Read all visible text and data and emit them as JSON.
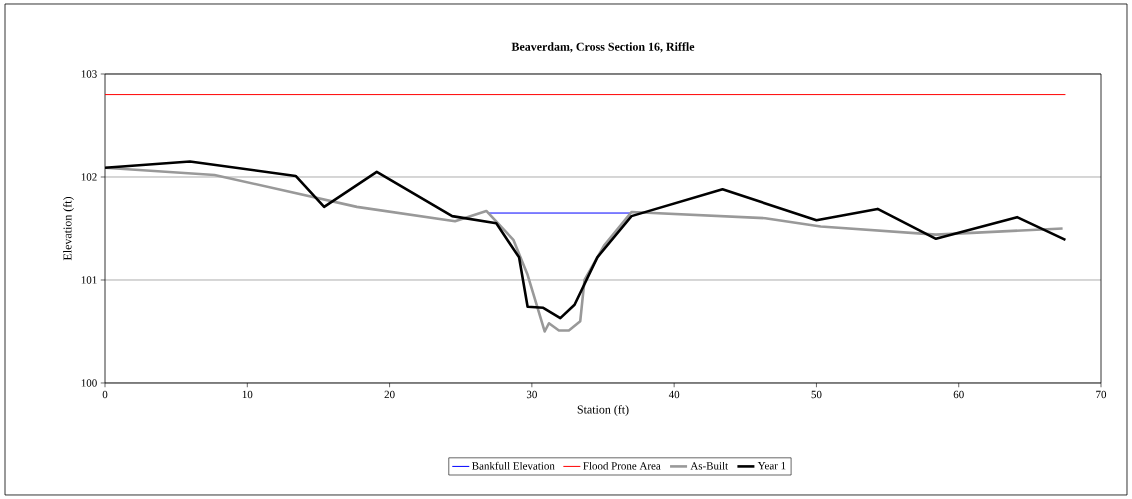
{
  "chart_data": {
    "type": "line",
    "title": "Beaverdam, Cross Section 16, Riffle",
    "xlabel": "Station (ft)",
    "ylabel": "Elevation (ft)",
    "xlim": [
      0,
      70
    ],
    "xticks": [
      0,
      10,
      20,
      30,
      40,
      50,
      60,
      70
    ],
    "ylim": [
      100,
      103
    ],
    "yticks": [
      100,
      101,
      102,
      103
    ],
    "grid": "y",
    "legend": "bottom",
    "marker": "none",
    "line_style": "solid",
    "series": [
      {
        "name": "Bankfull Elevation",
        "color": "#0000ff",
        "x": [
          26.9,
          37.0
        ],
        "values": [
          101.65,
          101.65
        ]
      },
      {
        "name": "Flood Prone Area",
        "color": "#ff0000",
        "x": [
          0,
          67.5
        ],
        "values": [
          102.8,
          102.8
        ]
      },
      {
        "name": "As-Built",
        "color": "#999999",
        "x": [
          0,
          7.7,
          17.7,
          24.6,
          26.8,
          28.7,
          29.7,
          30.9,
          31.2,
          31.9,
          32.6,
          33.4,
          33.7,
          35.1,
          37.0,
          46.4,
          50.3,
          58.4,
          67.3
        ],
        "values": [
          102.09,
          102.02,
          101.71,
          101.57,
          101.67,
          101.39,
          101.05,
          100.5,
          100.58,
          100.51,
          100.51,
          100.6,
          101.0,
          101.34,
          101.66,
          101.6,
          101.52,
          101.44,
          101.5
        ]
      },
      {
        "name": "Year 1",
        "color": "#000000",
        "x": [
          0,
          5.97,
          13.4,
          15.4,
          19.1,
          24.4,
          27.5,
          29.1,
          29.7,
          30.8,
          32.0,
          33.0,
          34.6,
          37.0,
          43.4,
          50.0,
          54.3,
          58.4,
          64.1,
          67.5
        ],
        "values": [
          102.09,
          102.15,
          102.01,
          101.71,
          102.05,
          101.62,
          101.55,
          101.22,
          100.74,
          100.73,
          100.63,
          100.76,
          101.22,
          101.62,
          101.88,
          101.58,
          101.69,
          101.4,
          101.61,
          101.39
        ]
      }
    ]
  }
}
